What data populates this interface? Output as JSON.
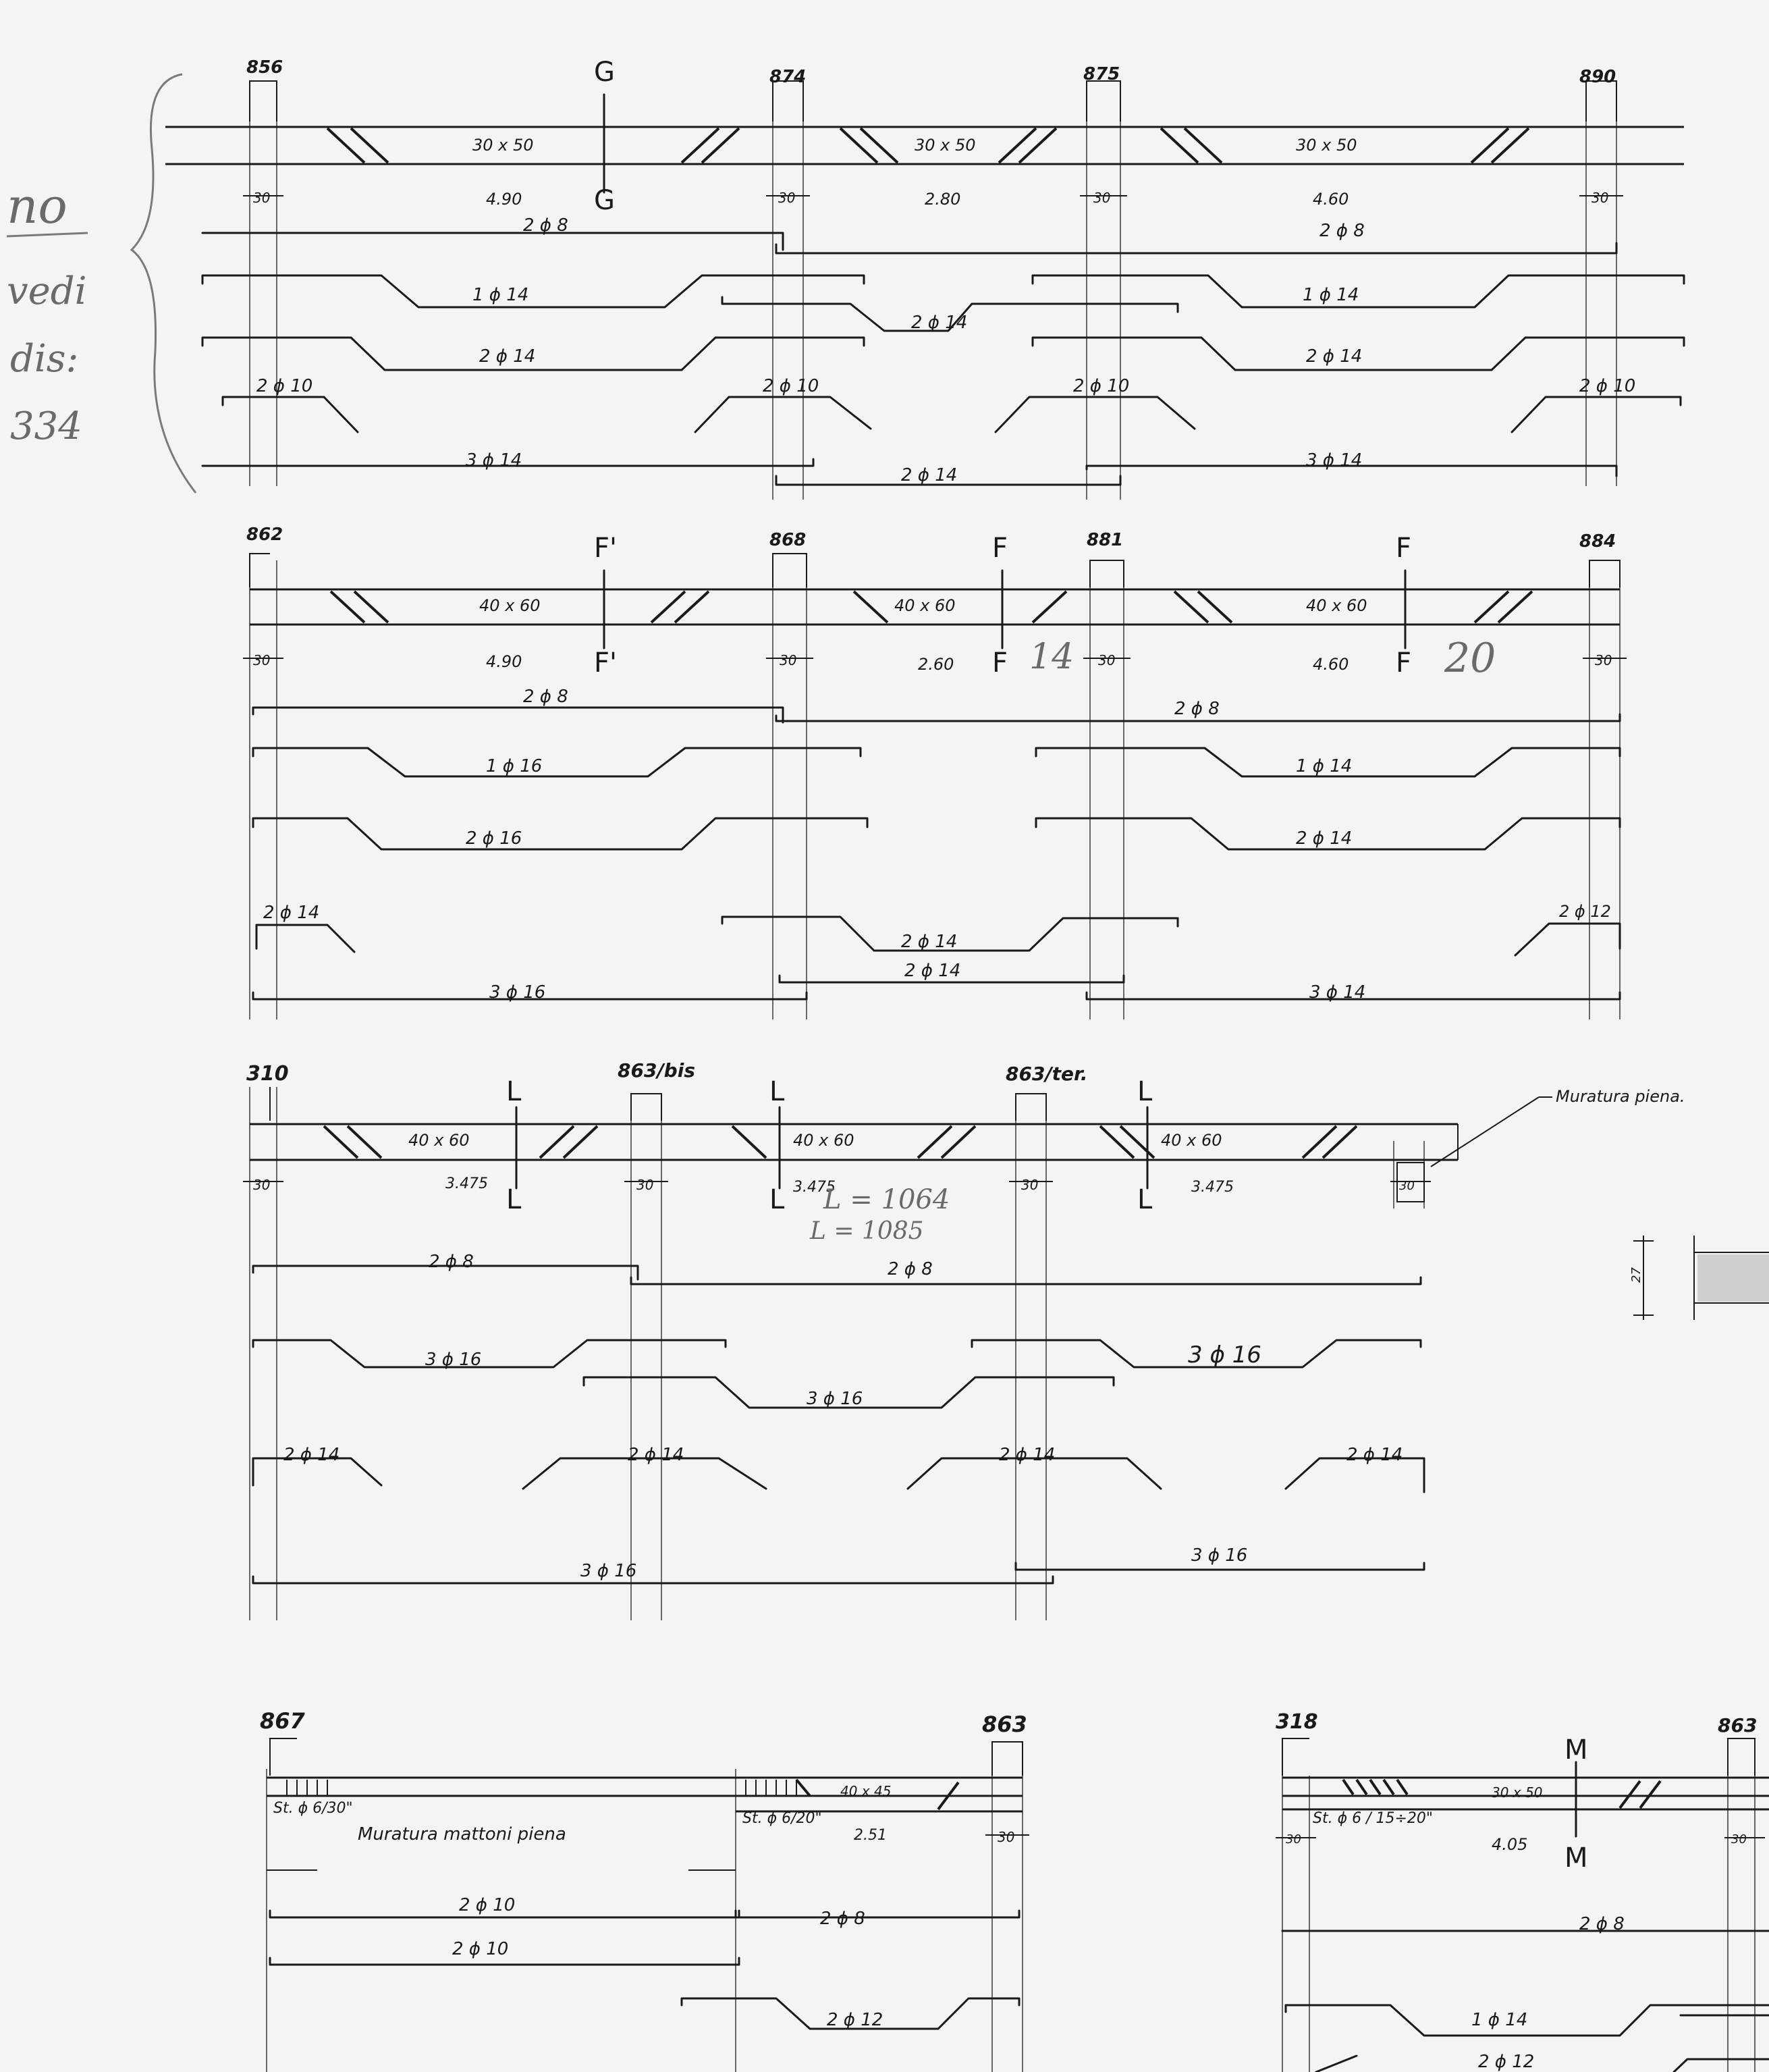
{
  "margin_note": [
    "no",
    "vedi",
    "dis:",
    "334"
  ],
  "beam_1": {
    "nodes": [
      "856",
      "874",
      "875",
      "890"
    ],
    "sections": [
      "30 x 50",
      "30 x 50",
      "30 x 50"
    ],
    "spans": [
      "4.90",
      "2.80",
      "4.60"
    ],
    "support_widths": [
      "30",
      "30",
      "30",
      "30"
    ],
    "section_cut": "G",
    "bars": [
      "2 ϕ 8",
      "2 ϕ 8",
      "1 ϕ 14",
      "2 ϕ 14",
      "1 ϕ 14",
      "2 ϕ 14",
      "2 ϕ 14",
      "2 ϕ 10",
      "2 ϕ 10",
      "2 ϕ 10",
      "2 ϕ 10",
      "3 ϕ 14",
      "2 ϕ 14",
      "3 ϕ 14"
    ]
  },
  "beam_2": {
    "nodes": [
      "862",
      "868",
      "881",
      "884"
    ],
    "sections": [
      "40 x 60",
      "40 x 60",
      "40 x 60"
    ],
    "spans": [
      "4.90",
      "2.60",
      "4.60"
    ],
    "support_widths": [
      "30",
      "30",
      "30",
      "30"
    ],
    "section_cuts": [
      "F'",
      "F",
      "F"
    ],
    "pencil_notes": [
      "14",
      "20"
    ],
    "bars": [
      "2 ϕ 8",
      "2 ϕ 8",
      "1 ϕ 16",
      "1 ϕ 14",
      "2 ϕ 16",
      "2 ϕ 14",
      "2 ϕ 14",
      "2 ϕ 12",
      "2 ϕ 14",
      "2 ϕ 14",
      "3 ϕ 16",
      "3 ϕ 14"
    ]
  },
  "beam_3": {
    "nodes": [
      "310",
      "863/bis",
      "863/ter."
    ],
    "sections": [
      "40 x 60",
      "40 x 60",
      "40 x 60"
    ],
    "spans": [
      "3.475",
      "3.475",
      "3.475"
    ],
    "support_widths": [
      "30",
      "30",
      "30",
      "30"
    ],
    "section_cut": "L",
    "note": "Muratura piena.",
    "pencil_notes": [
      "L = 1064",
      "L = 1085"
    ],
    "bars": [
      "2 ϕ 8",
      "2 ϕ 8",
      "3 ϕ 16",
      "3 ϕ 16",
      "3 ϕ 16",
      "2 ϕ 14",
      "2 ϕ 14",
      "2 ϕ 14",
      "2 ϕ 14",
      "3 ϕ 16",
      "3 ϕ 16"
    ],
    "detail_dim": "27"
  },
  "beam_4": {
    "nodes": [
      "867",
      "863"
    ],
    "stirrups": [
      "St. ϕ 6/30\"",
      "St. ϕ 6/20\""
    ],
    "masonry": "Muratura  mattoni  piena",
    "section": "40 x 45",
    "span": "2.51",
    "support_width": "30",
    "bars": [
      "2 ϕ 10",
      "2 ϕ 8",
      "2 ϕ 10",
      "2 ϕ 12"
    ]
  },
  "beam_5": {
    "nodes": [
      "318",
      "863"
    ],
    "stirrups": "St. ϕ 6 / 15÷20\"",
    "section": "30 x 50",
    "span": "4.05",
    "support_width": "30",
    "section_cut": "M",
    "bars": [
      "2 ϕ 8",
      "1 ϕ 14",
      "2 ϕ 12"
    ]
  }
}
